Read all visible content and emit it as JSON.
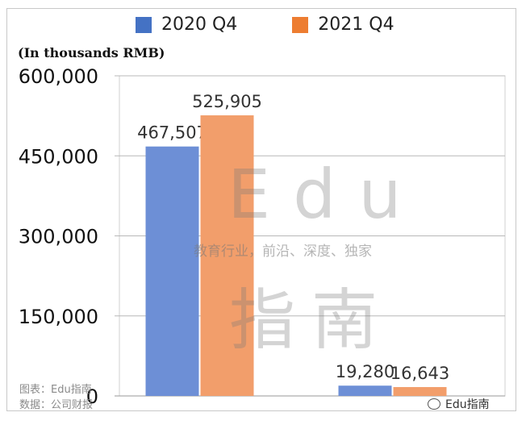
{
  "chart_data": {
    "type": "bar",
    "categories": [
      "",
      ""
    ],
    "series": [
      {
        "name": "2020 Q4",
        "values": [
          467507,
          19280
        ],
        "labels": [
          "467,507",
          "19,280"
        ],
        "color": "#6d8fd6"
      },
      {
        "name": "2021 Q4",
        "values": [
          525905,
          16643
        ],
        "labels": [
          "525,905",
          "16,643"
        ],
        "color": "#f29e6b"
      }
    ],
    "legend_colors": [
      "#4472c4",
      "#ed7d31"
    ],
    "unit_label": "(In thousands RMB)",
    "yticks": [
      {
        "value": 0,
        "label": "0"
      },
      {
        "value": 150000,
        "label": "150,000"
      },
      {
        "value": 300000,
        "label": "300,000"
      },
      {
        "value": 450000,
        "label": "450,000"
      },
      {
        "value": 600000,
        "label": "600,000"
      }
    ],
    "ylim": [
      0,
      600000
    ],
    "grid": true,
    "legend_position": "top"
  },
  "watermark": {
    "title": "Edu",
    "subtitle": "教育行业，前沿、深度、独家",
    "cn": "指南"
  },
  "footer": {
    "chart_source": "图表：Edu指南",
    "data_source": "数据：公司财报"
  },
  "brand": "Edu指南"
}
